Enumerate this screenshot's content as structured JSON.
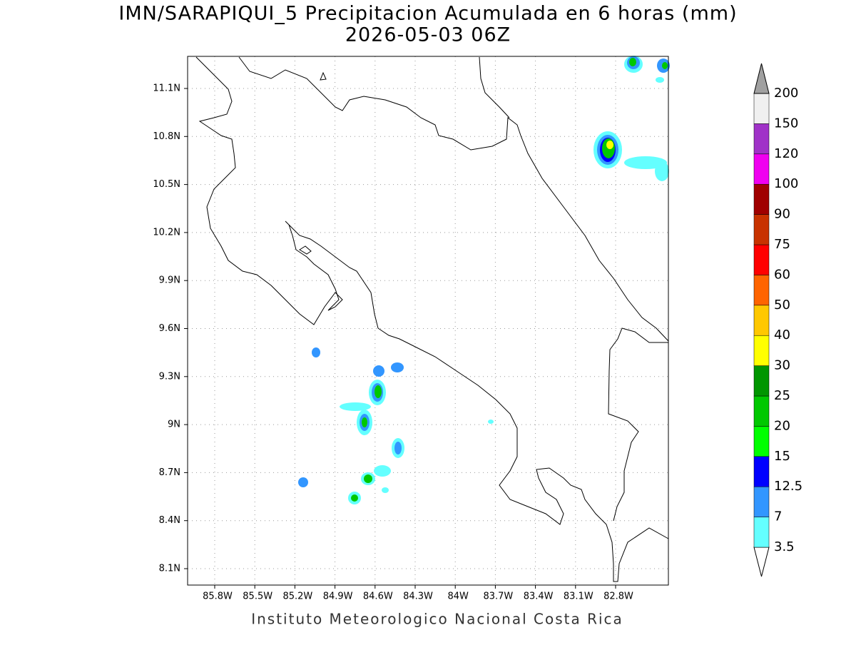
{
  "header": {
    "title": "IMN/SARAPIQUI_5 Precipitacion Acumulada en 6 horas (mm)",
    "subtitle": "2026-05-03 06Z"
  },
  "map": {
    "lon_ticks": [
      "85.8W",
      "85.5W",
      "85.2W",
      "84.9W",
      "84.6W",
      "84.3W",
      "84W",
      "83.7W",
      "83.4W",
      "83.1W",
      "82.8W"
    ],
    "lat_ticks": [
      "11.1N",
      "10.8N",
      "10.5N",
      "10.2N",
      "9.9N",
      "9.6N",
      "9.3N",
      "9N",
      "8.7N",
      "8.4N",
      "8.1N"
    ]
  },
  "colorbar": {
    "levels": [
      "3.5",
      "7",
      "12.5",
      "15",
      "20",
      "25",
      "30",
      "40",
      "50",
      "60",
      "75",
      "90",
      "100",
      "120",
      "150",
      "200"
    ],
    "colors": [
      "#ffffff",
      "#64ffff",
      "#3296ff",
      "#0000ff",
      "#00ff00",
      "#00c800",
      "#009600",
      "#ffff00",
      "#ffc800",
      "#ff6400",
      "#ff0000",
      "#c83200",
      "#a00000",
      "#f000f0",
      "#a032c8",
      "#f0f0f0",
      "#a0a0a0"
    ]
  },
  "footer": "Instituto Meteorologico Nacional Costa Rica"
}
